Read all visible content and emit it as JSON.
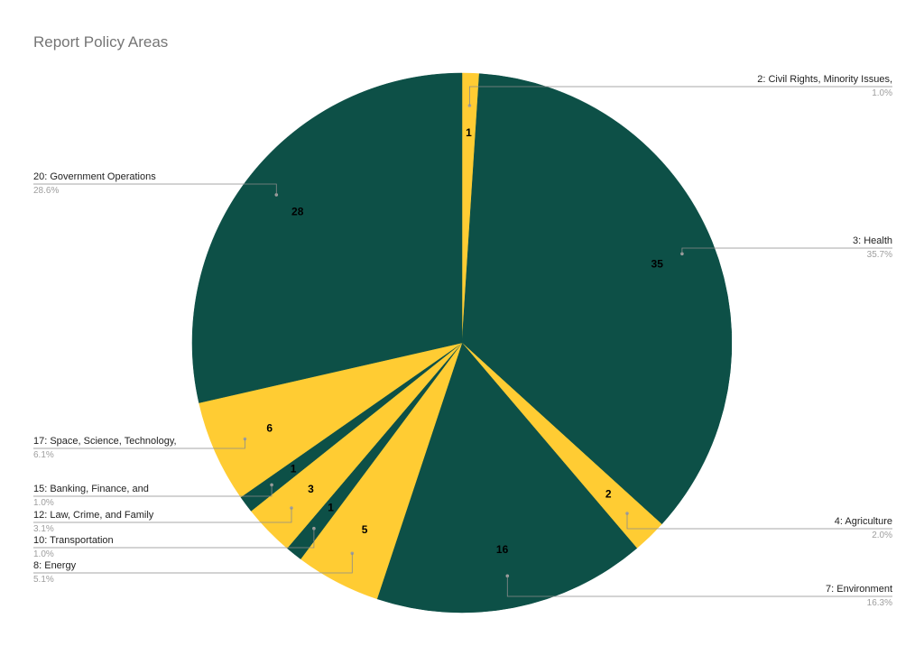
{
  "chart_data": {
    "type": "pie",
    "title": "Report Policy Areas",
    "colors": [
      "#ffcc33",
      "#0d5047"
    ],
    "slices": [
      {
        "label": "2: Civil Rights, Minority Issues,",
        "value": 1,
        "percent": "1.0%",
        "color": "#ffcc33"
      },
      {
        "label": "3: Health",
        "value": 35,
        "percent": "35.7%",
        "color": "#0d5047"
      },
      {
        "label": "4: Agriculture",
        "value": 2,
        "percent": "2.0%",
        "color": "#ffcc33"
      },
      {
        "label": "7: Environment",
        "value": 16,
        "percent": "16.3%",
        "color": "#0d5047"
      },
      {
        "label": "8: Energy",
        "value": 5,
        "percent": "5.1%",
        "color": "#ffcc33"
      },
      {
        "label": "10: Transportation",
        "value": 1,
        "percent": "1.0%",
        "color": "#0d5047"
      },
      {
        "label": "12: Law, Crime, and Family",
        "value": 3,
        "percent": "3.1%",
        "color": "#ffcc33"
      },
      {
        "label": "15: Banking, Finance, and",
        "value": 1,
        "percent": "1.0%",
        "color": "#0d5047"
      },
      {
        "label": "17: Space, Science, Technology,",
        "value": 6,
        "percent": "6.1%",
        "color": "#ffcc33"
      },
      {
        "label": "20: Government Operations",
        "value": 28,
        "percent": "28.6%",
        "color": "#0d5047"
      }
    ]
  }
}
